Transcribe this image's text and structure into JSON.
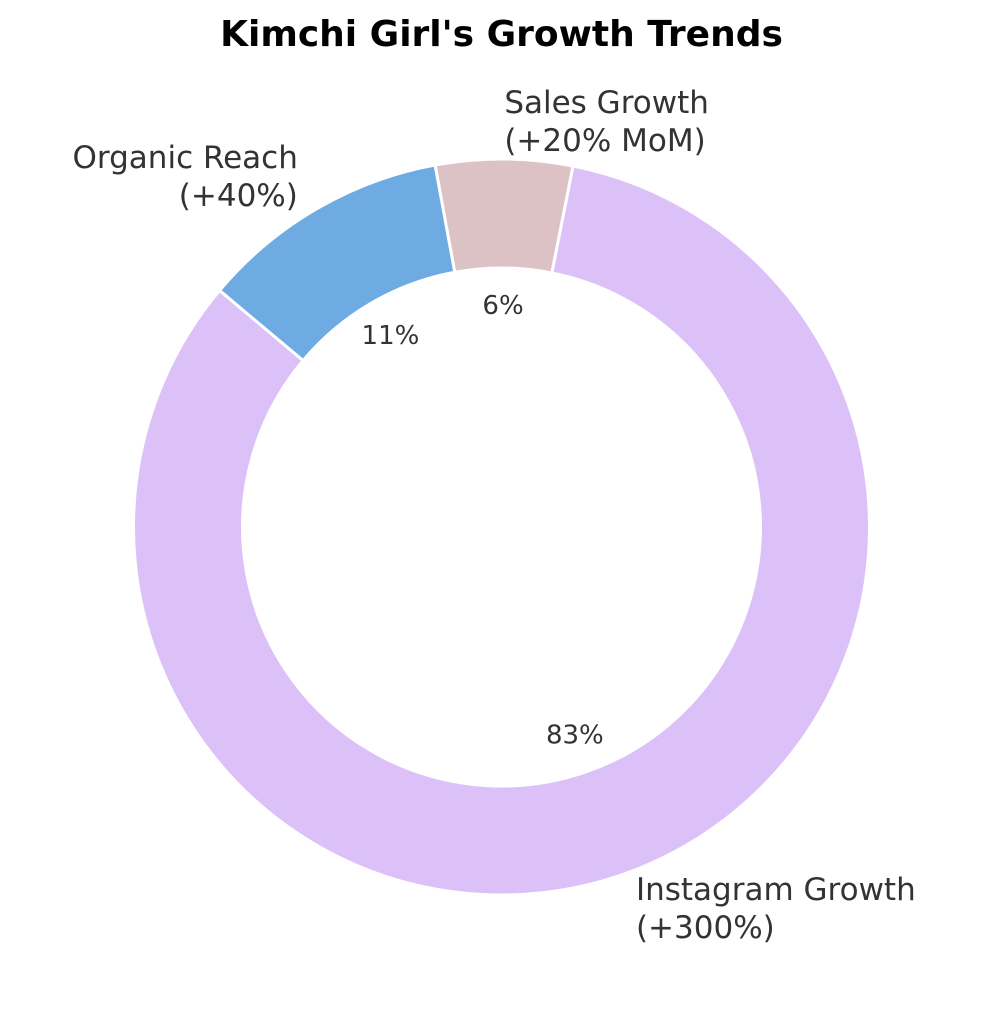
{
  "chart_data": {
    "type": "pie",
    "variant": "donut",
    "title": "Kimchi Girl's Growth Trends",
    "slices": [
      {
        "label": [
          "Instagram Growth",
          "(+300%)"
        ],
        "value": 83,
        "pct_label": "83%",
        "color": "#dcc1f8"
      },
      {
        "label": [
          "Sales Growth",
          "(+20% MoM)"
        ],
        "value": 6,
        "pct_label": "6%",
        "color": "#dcc1c5"
      },
      {
        "label": [
          "Organic Reach",
          "(+40%)"
        ],
        "value": 11,
        "pct_label": "11%",
        "color": "#6eabe2"
      }
    ],
    "legend": "none"
  }
}
